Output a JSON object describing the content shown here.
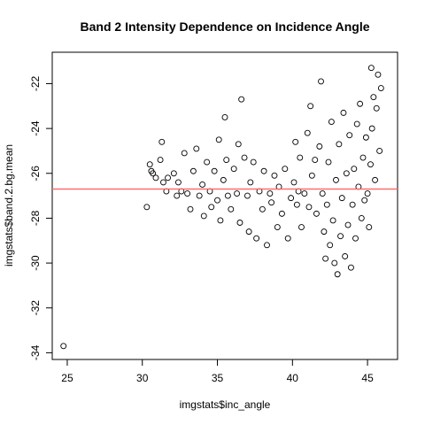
{
  "chart_data": {
    "type": "scatter",
    "title": "Band 2 Intensity Dependence on Incidence Angle",
    "xlabel": "imgstats$inc_angle",
    "ylabel": "imgstats$band.2.bg.mean",
    "xlim": [
      24,
      47
    ],
    "ylim": [
      -34.3,
      -20.6
    ],
    "x_ticks": [
      25,
      30,
      35,
      40,
      45
    ],
    "y_ticks": [
      -34,
      -32,
      -30,
      -28,
      -26,
      -24,
      -22
    ],
    "grid": false,
    "legend": "none",
    "reference_line": {
      "y": -26.7,
      "color": "#ff6b6b"
    },
    "marker": "open-circle",
    "point_color": "#000000",
    "points": [
      [
        24.75,
        -33.7
      ],
      [
        30.3,
        -27.5
      ],
      [
        30.5,
        -25.6
      ],
      [
        30.6,
        -25.9
      ],
      [
        30.7,
        -26.0
      ],
      [
        30.9,
        -26.2
      ],
      [
        31.2,
        -25.4
      ],
      [
        31.3,
        -24.6
      ],
      [
        31.4,
        -26.4
      ],
      [
        31.6,
        -26.8
      ],
      [
        31.7,
        -26.2
      ],
      [
        32.1,
        -26.0
      ],
      [
        32.3,
        -27.0
      ],
      [
        32.4,
        -26.4
      ],
      [
        32.6,
        -26.8
      ],
      [
        32.8,
        -25.1
      ],
      [
        33.0,
        -26.9
      ],
      [
        33.2,
        -27.6
      ],
      [
        33.4,
        -25.9
      ],
      [
        33.6,
        -24.9
      ],
      [
        33.8,
        -27.0
      ],
      [
        34.0,
        -26.5
      ],
      [
        34.1,
        -27.9
      ],
      [
        34.3,
        -25.5
      ],
      [
        34.5,
        -26.8
      ],
      [
        34.6,
        -27.5
      ],
      [
        34.8,
        -25.9
      ],
      [
        35.0,
        -27.2
      ],
      [
        35.1,
        -24.5
      ],
      [
        35.2,
        -28.1
      ],
      [
        35.4,
        -26.3
      ],
      [
        35.5,
        -23.5
      ],
      [
        35.6,
        -25.4
      ],
      [
        35.7,
        -27.0
      ],
      [
        35.9,
        -27.6
      ],
      [
        36.1,
        -25.8
      ],
      [
        36.3,
        -26.9
      ],
      [
        36.4,
        -24.7
      ],
      [
        36.5,
        -28.2
      ],
      [
        36.6,
        -22.7
      ],
      [
        36.8,
        -25.3
      ],
      [
        37.0,
        -27.0
      ],
      [
        37.1,
        -28.6
      ],
      [
        37.2,
        -26.4
      ],
      [
        37.4,
        -25.5
      ],
      [
        37.6,
        -28.9
      ],
      [
        37.8,
        -26.8
      ],
      [
        38.0,
        -27.6
      ],
      [
        38.1,
        -25.9
      ],
      [
        38.3,
        -29.2
      ],
      [
        38.5,
        -26.9
      ],
      [
        38.6,
        -27.3
      ],
      [
        38.8,
        -26.1
      ],
      [
        39.0,
        -28.4
      ],
      [
        39.1,
        -26.6
      ],
      [
        39.3,
        -27.8
      ],
      [
        39.5,
        -25.8
      ],
      [
        39.7,
        -28.9
      ],
      [
        39.9,
        -27.1
      ],
      [
        40.1,
        -26.4
      ],
      [
        40.2,
        -24.6
      ],
      [
        40.3,
        -27.4
      ],
      [
        40.4,
        -26.8
      ],
      [
        40.5,
        -25.3
      ],
      [
        40.6,
        -28.4
      ],
      [
        40.8,
        -26.9
      ],
      [
        41.0,
        -24.2
      ],
      [
        41.1,
        -27.5
      ],
      [
        41.2,
        -23.0
      ],
      [
        41.3,
        -26.1
      ],
      [
        41.5,
        -25.4
      ],
      [
        41.6,
        -27.8
      ],
      [
        41.8,
        -24.8
      ],
      [
        41.9,
        -21.9
      ],
      [
        42.0,
        -26.9
      ],
      [
        42.1,
        -28.6
      ],
      [
        42.2,
        -29.8
      ],
      [
        42.3,
        -27.4
      ],
      [
        42.4,
        -25.5
      ],
      [
        42.5,
        -29.2
      ],
      [
        42.6,
        -23.7
      ],
      [
        42.7,
        -28.1
      ],
      [
        42.8,
        -30.0
      ],
      [
        42.9,
        -26.3
      ],
      [
        43.0,
        -30.5
      ],
      [
        43.1,
        -24.7
      ],
      [
        43.2,
        -28.8
      ],
      [
        43.3,
        -27.1
      ],
      [
        43.4,
        -23.3
      ],
      [
        43.5,
        -29.7
      ],
      [
        43.6,
        -26.0
      ],
      [
        43.7,
        -28.3
      ],
      [
        43.8,
        -24.3
      ],
      [
        43.9,
        -30.2
      ],
      [
        44.0,
        -27.4
      ],
      [
        44.1,
        -25.8
      ],
      [
        44.2,
        -28.9
      ],
      [
        44.3,
        -23.8
      ],
      [
        44.4,
        -26.6
      ],
      [
        44.5,
        -22.9
      ],
      [
        44.6,
        -28.0
      ],
      [
        44.7,
        -25.3
      ],
      [
        44.8,
        -27.2
      ],
      [
        44.9,
        -24.4
      ],
      [
        45.0,
        -26.9
      ],
      [
        45.1,
        -28.4
      ],
      [
        45.2,
        -25.6
      ],
      [
        45.25,
        -21.3
      ],
      [
        45.3,
        -24.0
      ],
      [
        45.4,
        -22.6
      ],
      [
        45.5,
        -26.3
      ],
      [
        45.6,
        -23.1
      ],
      [
        45.7,
        -21.6
      ],
      [
        45.8,
        -25.0
      ],
      [
        45.9,
        -22.2
      ]
    ]
  }
}
